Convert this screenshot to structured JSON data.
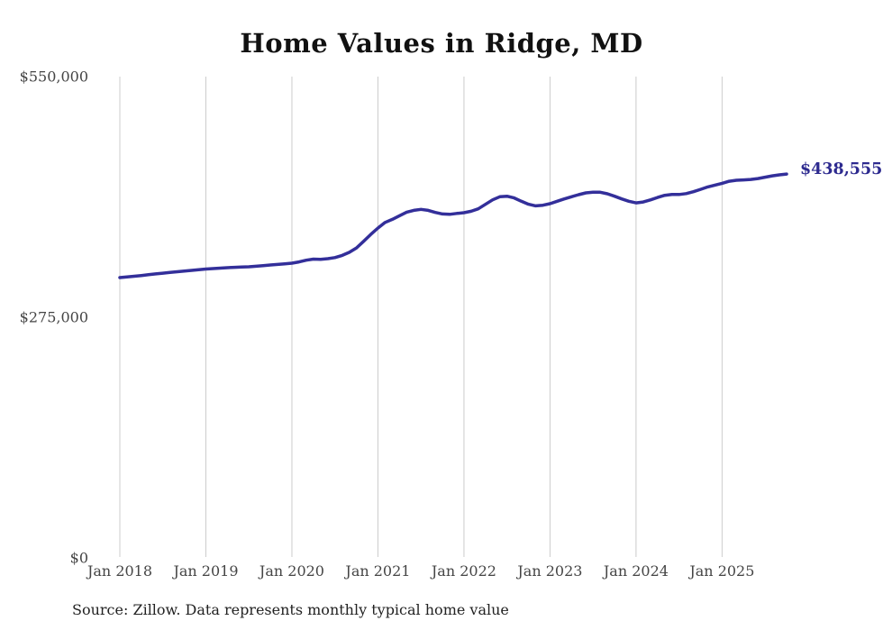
{
  "colors": {
    "background": "#ffffff",
    "line": "#332f9a",
    "end_label": "#2d2a8f",
    "grid": "#cccccc",
    "axis_text": "#454545",
    "title_text": "#111111"
  },
  "chart_data": {
    "type": "line",
    "title": "Home Values in Ridge, MD",
    "series_name": "Monthly typical home value",
    "x_unit": "month",
    "x_start": "Jan 2018",
    "x_end": "Oct 2025",
    "x_tick_labels": [
      "Jan 2018",
      "Jan 2019",
      "Jan 2020",
      "Jan 2021",
      "Jan 2022",
      "Jan 2023",
      "Jan 2024",
      "Jan 2025"
    ],
    "x_tick_indices": [
      0,
      12,
      24,
      36,
      48,
      60,
      72,
      84
    ],
    "y_tick_labels": [
      "$550,000",
      "$275,000",
      "$0"
    ],
    "y_tick_values": [
      550000,
      275000,
      0
    ],
    "ylim": [
      0,
      550000
    ],
    "grid": "vertical-only",
    "legend": "none",
    "values": [
      320100,
      320900,
      321700,
      322500,
      323400,
      324300,
      325200,
      326000,
      326800,
      327600,
      328400,
      329200,
      329900,
      330400,
      330900,
      331400,
      331900,
      332200,
      332500,
      333100,
      333800,
      334500,
      335200,
      335900,
      336600,
      338000,
      340000,
      341200,
      341000,
      341800,
      343000,
      345500,
      349000,
      354000,
      361500,
      369500,
      376800,
      383200,
      386700,
      390800,
      395000,
      397000,
      398100,
      397000,
      394600,
      392900,
      392500,
      393500,
      394300,
      396000,
      398800,
      403900,
      409100,
      412600,
      413200,
      411200,
      407400,
      404000,
      402200,
      402900,
      404600,
      407400,
      410100,
      412600,
      414900,
      417000,
      417700,
      417700,
      416000,
      413200,
      410100,
      407400,
      405600,
      406600,
      409000,
      411800,
      414200,
      415200,
      415200,
      416200,
      418300,
      421000,
      423800,
      425900,
      427900,
      430300,
      431400,
      431900,
      432400,
      433400,
      435000,
      436500,
      437600,
      438555
    ],
    "end_value": 438555,
    "end_value_label": "$438,555",
    "source": "Source: Zillow. Data represents monthly typical home value"
  }
}
